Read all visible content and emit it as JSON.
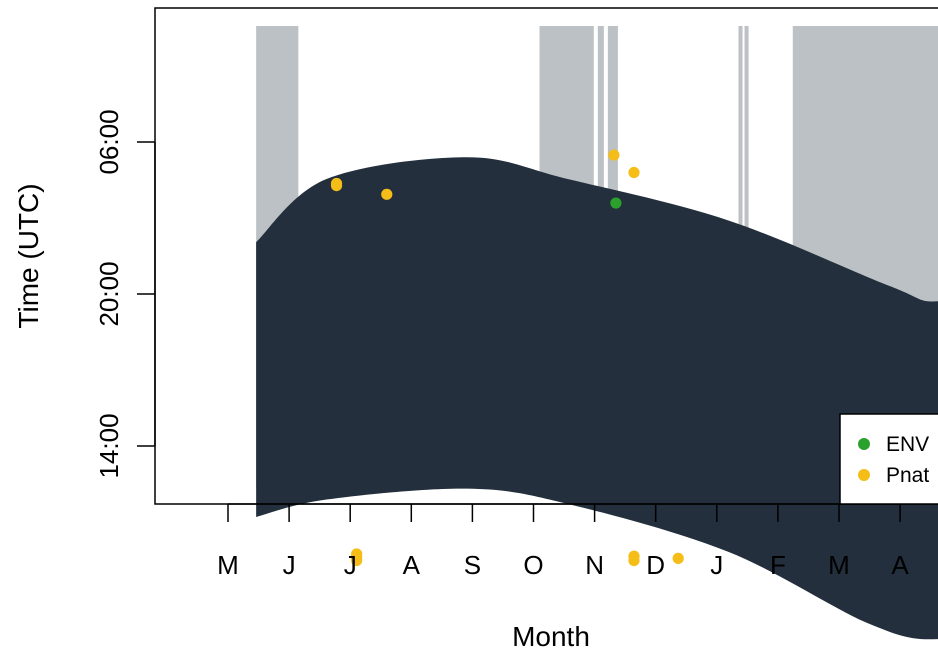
{
  "chart_data": {
    "type": "scatter",
    "xlabel": "Month",
    "ylabel": "Time (UTC)",
    "x_tick_labels": [
      "M",
      "J",
      "J",
      "A",
      "S",
      "O",
      "N",
      "D",
      "J",
      "F",
      "M",
      "A"
    ],
    "y_tick_labels": [
      "06:00",
      "20:00",
      "14:00"
    ],
    "legend": {
      "position": "bottom-right",
      "entries": [
        "ENV",
        "Pnat"
      ]
    },
    "colors": {
      "night_band": "#232f3c",
      "no_effort": "#bcc1c5",
      "ENV": "#2ca02c",
      "Pnat": "#f5bd17",
      "axis": "#000000"
    },
    "night_band": {
      "upper": [
        [
          15,
          4.6
        ],
        [
          50,
          1.7
        ],
        [
          120,
          0.7
        ],
        [
          170,
          1.7
        ],
        [
          250,
          3.6
        ],
        [
          330,
          6.6
        ],
        [
          355,
          7.3
        ],
        [
          395,
          6.2
        ],
        [
          435,
          4.0
        ],
        [
          455,
          2.6
        ]
      ],
      "lower": [
        [
          15,
          17.2
        ],
        [
          50,
          16.4
        ],
        [
          120,
          15.9
        ],
        [
          170,
          16.6
        ],
        [
          250,
          18.8
        ],
        [
          320,
          22.1
        ],
        [
          355,
          22.8
        ],
        [
          395,
          21.8
        ],
        [
          435,
          19.1
        ],
        [
          455,
          17.5
        ]
      ]
    },
    "no_effort_intervals": [
      [
        15,
        36
      ],
      [
        156,
        183
      ],
      [
        185,
        188
      ],
      [
        190,
        195
      ],
      [
        255,
        257
      ],
      [
        258,
        260
      ],
      [
        282,
        455
      ]
    ],
    "series": [
      {
        "name": "ENV",
        "points": [
          [
            194,
            2.8
          ]
        ]
      },
      {
        "name": "Pnat",
        "points": [
          [
            55,
            1.9
          ],
          [
            55,
            2.0
          ],
          [
            65,
            18.9
          ],
          [
            65,
            19.0
          ],
          [
            65,
            19.1
          ],
          [
            65,
            19.2
          ],
          [
            80,
            2.4
          ],
          [
            193,
            0.6
          ],
          [
            203,
            1.4
          ],
          [
            203,
            19.0
          ],
          [
            203,
            19.2
          ],
          [
            225,
            19.1
          ]
        ]
      }
    ]
  }
}
